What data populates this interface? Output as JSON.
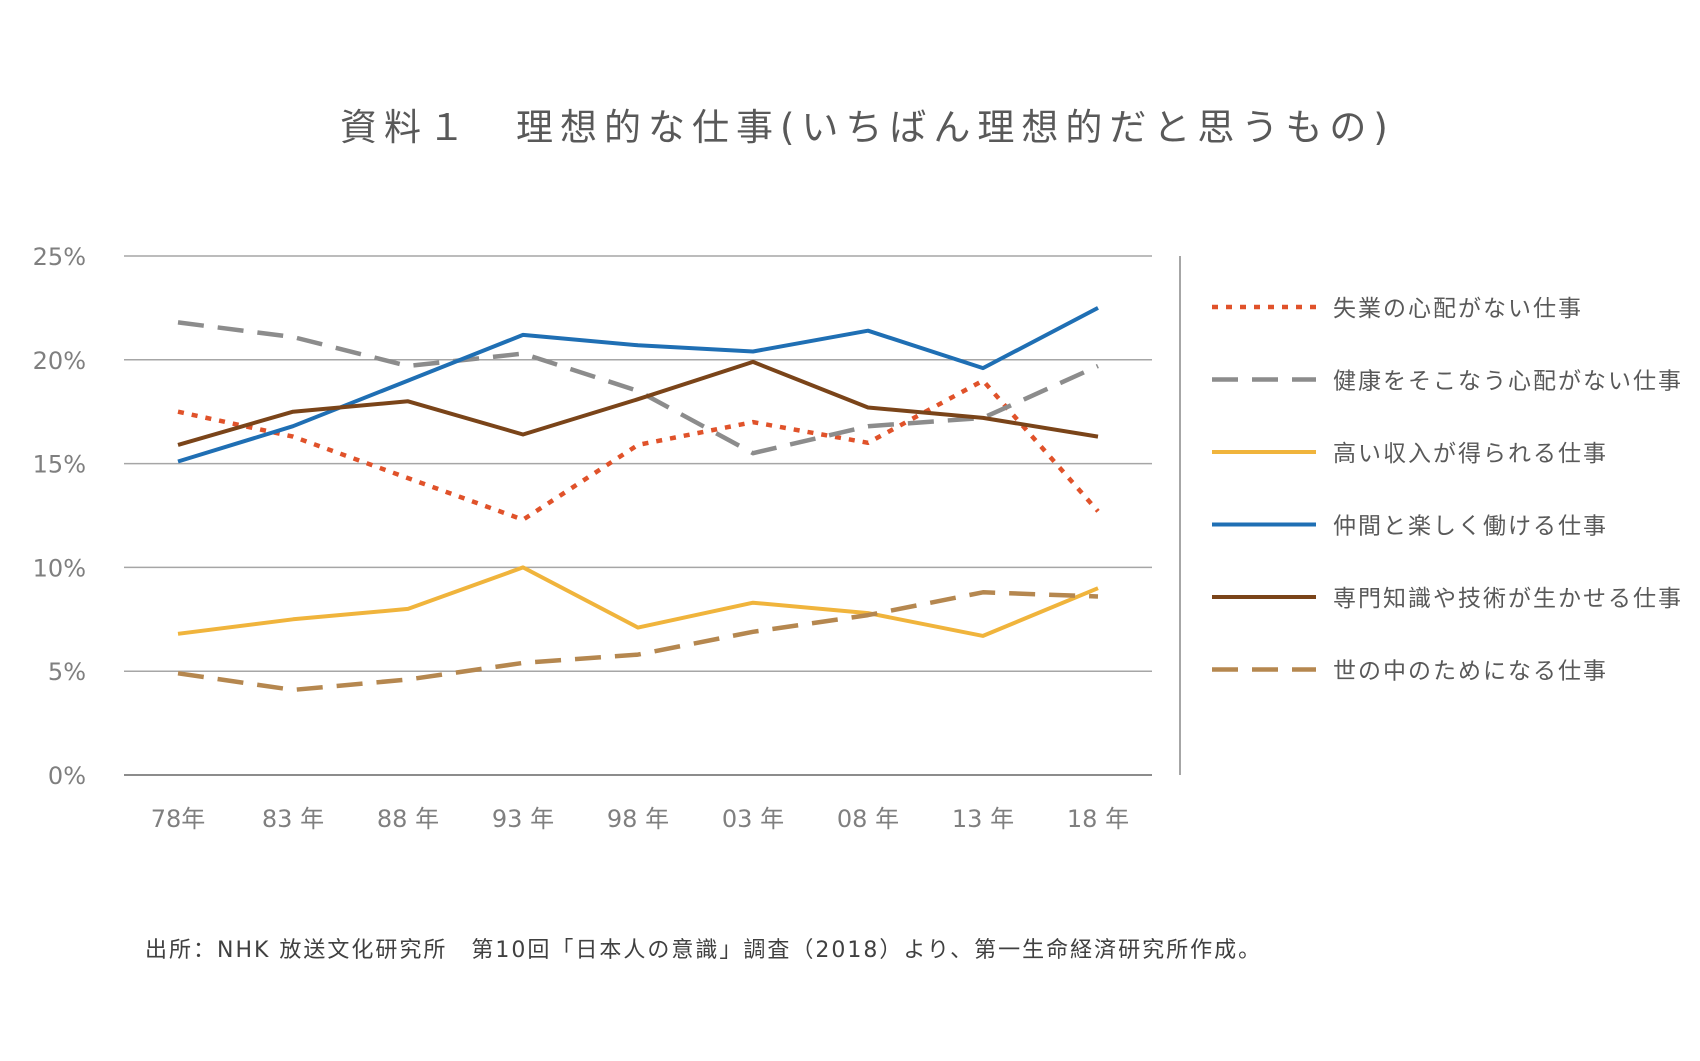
{
  "chart_data": {
    "type": "line",
    "title": "資料１　理想的な仕事(いちばん理想的だと思うもの)",
    "categories": [
      "78年",
      "83 年",
      "88 年",
      "93 年",
      "98 年",
      "03 年",
      "08 年",
      "13 年",
      "18 年"
    ],
    "y_ticks": [
      "0%",
      "5%",
      "10%",
      "15%",
      "20%",
      "25%"
    ],
    "ylim": [
      0,
      25
    ],
    "y_unit": "%",
    "grid": true,
    "legend_position": "right",
    "series": [
      {
        "name": "失業の心配がない仕事",
        "values": [
          17.5,
          16.3,
          14.3,
          12.3,
          15.9,
          17.0,
          16.0,
          19.0,
          12.7
        ],
        "color": "#e0522a",
        "dash": "dotted"
      },
      {
        "name": "健康をそこなう心配がない仕事",
        "values": [
          21.8,
          21.1,
          19.7,
          20.3,
          18.5,
          15.5,
          16.8,
          17.2,
          19.7
        ],
        "color": "#8c8c8c",
        "dash": "dashed"
      },
      {
        "name": "高い収入が得られる仕事",
        "values": [
          6.8,
          7.5,
          8.0,
          10.0,
          7.1,
          8.3,
          7.8,
          6.7,
          9.0
        ],
        "color": "#f0b43c",
        "dash": "solid"
      },
      {
        "name": "仲間と楽しく働ける仕事",
        "values": [
          15.1,
          16.8,
          19.0,
          21.2,
          20.7,
          20.4,
          21.4,
          19.6,
          22.5
        ],
        "color": "#1f6fb4",
        "dash": "solid"
      },
      {
        "name": "専門知識や技術が生かせる仕事",
        "values": [
          15.9,
          17.5,
          18.0,
          16.4,
          18.1,
          19.9,
          17.7,
          17.2,
          16.3
        ],
        "color": "#7a4419",
        "dash": "solid"
      },
      {
        "name": "世の中のためになる仕事",
        "values": [
          4.9,
          4.1,
          4.6,
          5.4,
          5.8,
          6.9,
          7.7,
          8.8,
          8.6
        ],
        "color": "#b5874f",
        "dash": "dashed"
      }
    ],
    "source": "出所：NHK 放送文化研究所　第10回「日本人の意識」調査（2018）より、第一生命経済研究所作成。"
  }
}
